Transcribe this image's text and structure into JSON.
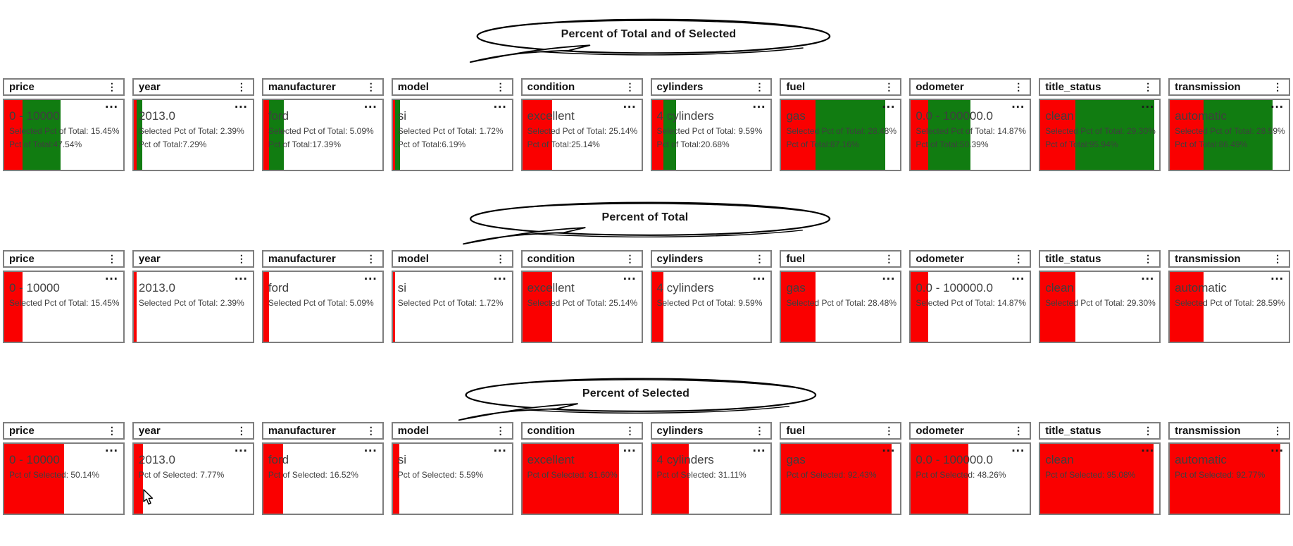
{
  "colors": {
    "selected_color": "#FA0000",
    "total_color": "#117C11",
    "border_color": "#7e7e7e"
  },
  "icons": {
    "kebab_menu": "⋮",
    "more_options": "..."
  },
  "sections": [
    {
      "callout": "Percent of Total and of Selected",
      "cards": [
        {
          "field": "price",
          "value": "0 - 10000",
          "stats": [
            "Selected Pct of Total: 15.45%",
            "Pct of Total:47.54%"
          ],
          "selected_pct": 15.45,
          "total_pct": 47.54
        },
        {
          "field": "year",
          "value": "2013.0",
          "stats": [
            "Selected Pct of Total: 2.39%",
            "Pct of Total:7.29%"
          ],
          "selected_pct": 2.39,
          "total_pct": 7.29
        },
        {
          "field": "manufacturer",
          "value": "ford",
          "stats": [
            "Selected Pct of Total: 5.09%",
            "Pct of Total:17.39%"
          ],
          "selected_pct": 5.09,
          "total_pct": 17.39
        },
        {
          "field": "model",
          "value": "si",
          "stats": [
            "Selected Pct of Total: 1.72%",
            "Pct of Total:6.19%"
          ],
          "selected_pct": 1.72,
          "total_pct": 6.19
        },
        {
          "field": "condition",
          "value": "excellent",
          "stats": [
            "Selected Pct of Total: 25.14%",
            "Pct of Total:25.14%"
          ],
          "selected_pct": 25.14,
          "total_pct": 25.14
        },
        {
          "field": "cylinders",
          "value": "4 cylinders",
          "stats": [
            "Selected Pct of Total: 9.59%",
            "Pct of Total:20.68%"
          ],
          "selected_pct": 9.59,
          "total_pct": 20.68
        },
        {
          "field": "fuel",
          "value": "gas",
          "stats": [
            "Selected Pct of Total: 28.48%",
            "Pct of Total:87.16%"
          ],
          "selected_pct": 28.48,
          "total_pct": 87.16
        },
        {
          "field": "odometer",
          "value": "0.0 - 100000.0",
          "stats": [
            "Selected Pct of Total: 14.87%",
            "Pct of Total:50.39%"
          ],
          "selected_pct": 14.87,
          "total_pct": 50.39
        },
        {
          "field": "title_status",
          "value": "clean",
          "stats": [
            "Selected Pct of Total: 29.30%",
            "Pct of Total:95.94%"
          ],
          "selected_pct": 29.3,
          "total_pct": 95.94
        },
        {
          "field": "transmission",
          "value": "automatic",
          "stats": [
            "Selected Pct of Total: 28.59%",
            "Pct of Total:86.49%"
          ],
          "selected_pct": 28.59,
          "total_pct": 86.49
        }
      ]
    },
    {
      "callout": "Percent of Total",
      "cards": [
        {
          "field": "price",
          "value": "0 - 10000",
          "stats": [
            "Selected Pct of Total: 15.45%"
          ],
          "selected_pct": 15.45
        },
        {
          "field": "year",
          "value": "2013.0",
          "stats": [
            "Selected Pct of Total: 2.39%"
          ],
          "selected_pct": 2.39
        },
        {
          "field": "manufacturer",
          "value": "ford",
          "stats": [
            "Selected Pct of Total: 5.09%"
          ],
          "selected_pct": 5.09
        },
        {
          "field": "model",
          "value": "si",
          "stats": [
            "Selected Pct of Total: 1.72%"
          ],
          "selected_pct": 1.72
        },
        {
          "field": "condition",
          "value": "excellent",
          "stats": [
            "Selected Pct of Total: 25.14%"
          ],
          "selected_pct": 25.14
        },
        {
          "field": "cylinders",
          "value": "4 cylinders",
          "stats": [
            "Selected Pct of Total: 9.59%"
          ],
          "selected_pct": 9.59
        },
        {
          "field": "fuel",
          "value": "gas",
          "stats": [
            "Selected Pct of Total: 28.48%"
          ],
          "selected_pct": 28.48
        },
        {
          "field": "odometer",
          "value": "0.0 - 100000.0",
          "stats": [
            "Selected Pct of Total: 14.87%"
          ],
          "selected_pct": 14.87
        },
        {
          "field": "title_status",
          "value": "clean",
          "stats": [
            "Selected Pct of Total: 29.30%"
          ],
          "selected_pct": 29.3
        },
        {
          "field": "transmission",
          "value": "automatic",
          "stats": [
            "Selected Pct of Total: 28.59%"
          ],
          "selected_pct": 28.59
        }
      ]
    },
    {
      "callout": "Percent of Selected",
      "cards": [
        {
          "field": "price",
          "value": "0 - 10000",
          "stats": [
            "Pct of Selected: 50.14%"
          ],
          "selected_pct": 50.14
        },
        {
          "field": "year",
          "value": "2013.0",
          "stats": [
            "Pct of Selected: 7.77%"
          ],
          "selected_pct": 7.77
        },
        {
          "field": "manufacturer",
          "value": "ford",
          "stats": [
            "Pct of Selected: 16.52%"
          ],
          "selected_pct": 16.52
        },
        {
          "field": "model",
          "value": "si",
          "stats": [
            "Pct of Selected: 5.59%"
          ],
          "selected_pct": 5.59
        },
        {
          "field": "condition",
          "value": "excellent",
          "stats": [
            "Pct of Selected: 81.60%"
          ],
          "selected_pct": 81.6
        },
        {
          "field": "cylinders",
          "value": "4 cylinders",
          "stats": [
            "Pct of Selected: 31.11%"
          ],
          "selected_pct": 31.11
        },
        {
          "field": "fuel",
          "value": "gas",
          "stats": [
            "Pct of Selected: 92.43%"
          ],
          "selected_pct": 92.43
        },
        {
          "field": "odometer",
          "value": "0.0 - 100000.0",
          "stats": [
            "Pct of Selected: 48.26%"
          ],
          "selected_pct": 48.26
        },
        {
          "field": "title_status",
          "value": "clean",
          "stats": [
            "Pct of Selected: 95.08%"
          ],
          "selected_pct": 95.08
        },
        {
          "field": "transmission",
          "value": "automatic",
          "stats": [
            "Pct of Selected: 92.77%"
          ],
          "selected_pct": 92.77
        }
      ]
    }
  ]
}
